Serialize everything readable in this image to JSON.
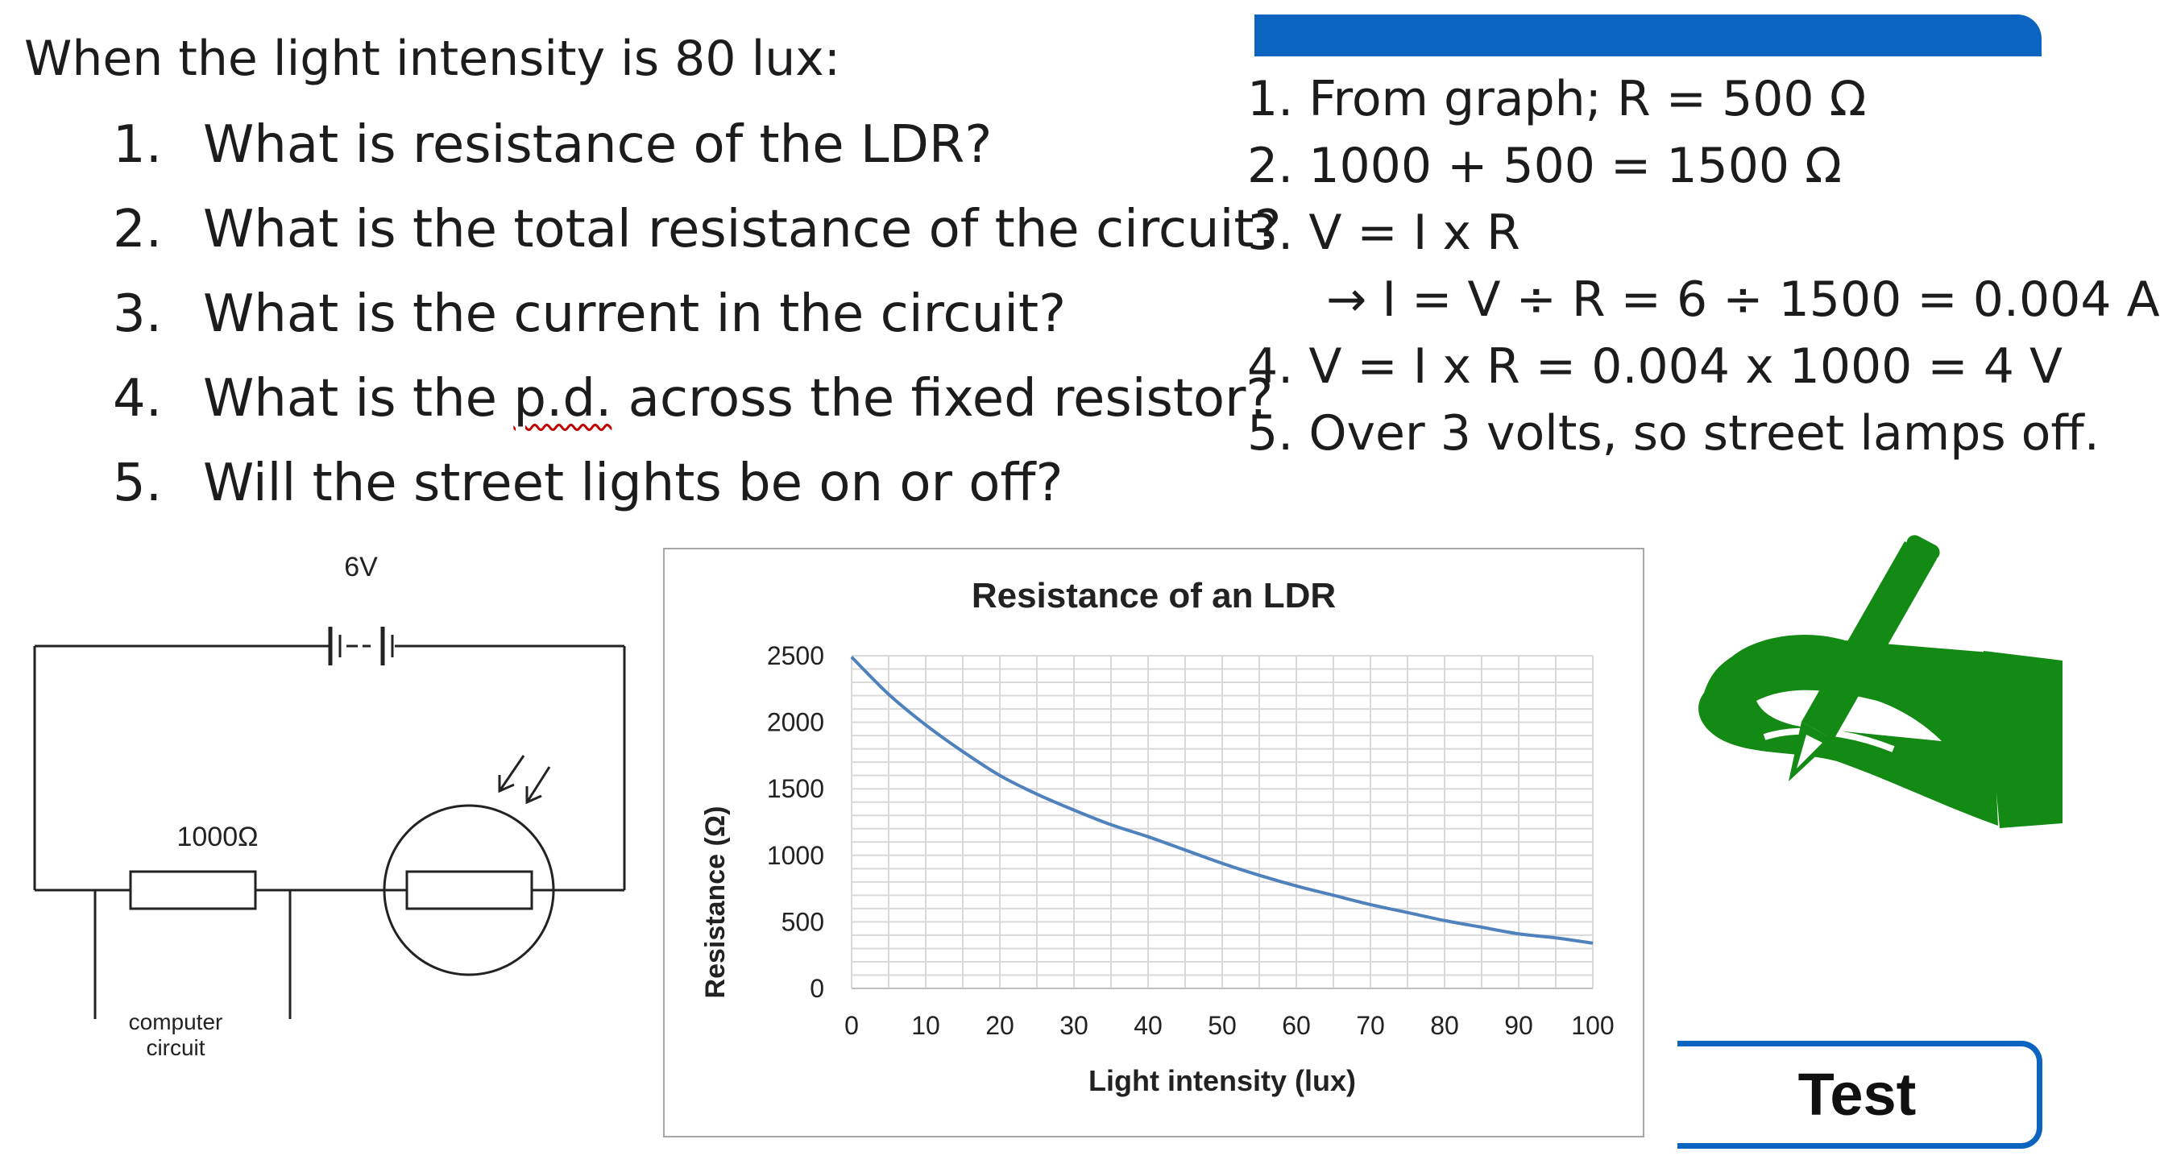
{
  "intro": "When the light intensity is 80 lux:",
  "questions": [
    {
      "num": "1.",
      "pre": "What is resistance of the LDR?",
      "mark": "",
      "post": ""
    },
    {
      "num": "2.",
      "pre": "What is the total resistance of the circuit?",
      "mark": "",
      "post": ""
    },
    {
      "num": "3.",
      "pre": "What is the current in the circuit?",
      "mark": "",
      "post": ""
    },
    {
      "num": "4.",
      "pre": "What is the ",
      "mark": "p.d.",
      "post": " across the fixed resistor?"
    },
    {
      "num": "5.",
      "pre": "Will the street lights be on or off?",
      "mark": "",
      "post": ""
    }
  ],
  "answers": [
    "1. From graph; R = 500 Ω",
    "2. 1000 + 500 = 1500 Ω",
    "3. V = I x R",
    "→ I = V ÷ R = 6 ÷ 1500 = 0.004 A",
    "4. V = I x R = 0.004 x 1000 = 4 V",
    "5. Over 3 volts, so street lamps off."
  ],
  "circuit": {
    "battery_label": "6V",
    "resistor_label": "1000Ω",
    "computer_label_1": "computer",
    "computer_label_2": "circuit"
  },
  "chart_data": {
    "type": "line",
    "title": "Resistance of an LDR",
    "xlabel": "Light intensity (lux)",
    "ylabel": "Resistance (Ω)",
    "xlim": [
      0,
      100
    ],
    "ylim": [
      0,
      2500
    ],
    "xticks": [
      0,
      10,
      20,
      30,
      40,
      50,
      60,
      70,
      80,
      90,
      100
    ],
    "yticks": [
      0,
      500,
      1000,
      1500,
      2000,
      2500
    ],
    "grid": true,
    "legend": "none",
    "color": "#4f81bd",
    "series": [
      {
        "x": [
          0,
          5,
          10,
          15,
          20,
          25,
          30,
          35,
          40,
          45,
          50,
          55,
          60,
          65,
          70,
          75,
          80,
          85,
          90,
          95,
          100
        ],
        "values": [
          2490,
          2210,
          1980,
          1780,
          1600,
          1460,
          1340,
          1230,
          1140,
          1040,
          940,
          850,
          770,
          700,
          630,
          570,
          510,
          460,
          410,
          380,
          340
        ]
      }
    ]
  },
  "hand_color": "#138a13",
  "test_button": "Test"
}
